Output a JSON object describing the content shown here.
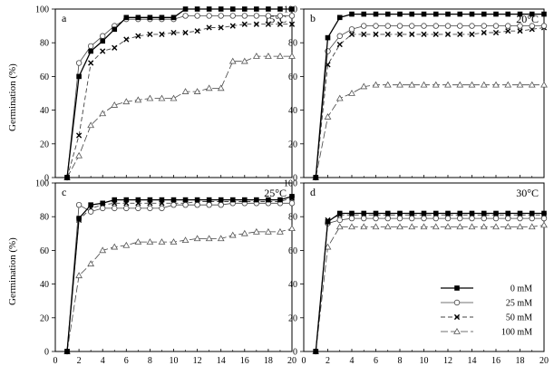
{
  "figure": {
    "ylabel": "Germination (%)",
    "legend_placement": "bottom-right of panel d"
  },
  "chart_data": [
    {
      "type": "line",
      "panel": "a",
      "annotation": "15°C",
      "ylabel": "Germination (%)",
      "xlim": [
        0,
        20
      ],
      "ylim": [
        0,
        100
      ],
      "x_ticks": [
        "0",
        "2",
        "4",
        "6",
        "8",
        "10",
        "12",
        "14",
        "16",
        "18",
        "20"
      ],
      "y_ticks": [
        "0",
        "20",
        "40",
        "60",
        "80",
        "100"
      ],
      "grid": false,
      "x": [
        1,
        2,
        3,
        4,
        5,
        6,
        7,
        8,
        9,
        10,
        11,
        12,
        13,
        14,
        15,
        16,
        17,
        18,
        19,
        20
      ],
      "series": [
        {
          "name": "0 mM",
          "values": [
            0,
            60,
            75,
            81,
            88,
            95,
            95,
            95,
            95,
            95,
            100,
            100,
            100,
            100,
            100,
            100,
            100,
            100,
            100,
            100
          ]
        },
        {
          "name": "25 mM",
          "values": [
            0,
            68,
            78,
            84,
            90,
            94,
            94,
            94,
            94,
            94,
            96,
            96,
            96,
            96,
            96,
            96,
            96,
            96,
            96,
            96
          ]
        },
        {
          "name": "50 mM",
          "values": [
            0,
            25,
            68,
            75,
            77,
            82,
            84,
            85,
            85,
            86,
            86,
            87,
            89,
            89,
            90,
            91,
            91,
            91,
            91,
            91
          ]
        },
        {
          "name": "100 mM",
          "values": [
            0,
            13,
            31,
            38,
            43,
            45,
            46,
            47,
            47,
            47,
            51,
            51,
            53,
            53,
            69,
            69,
            72,
            72,
            72,
            72
          ]
        }
      ]
    },
    {
      "type": "line",
      "panel": "b",
      "annotation": "20°C",
      "ylabel": "",
      "xlim": [
        0,
        20
      ],
      "ylim": [
        0,
        100
      ],
      "x_ticks": [
        "0",
        "2",
        "4",
        "6",
        "8",
        "10",
        "12",
        "14",
        "16",
        "18",
        "20"
      ],
      "y_ticks": [
        "0",
        "20",
        "40",
        "60",
        "80",
        "100"
      ],
      "grid": false,
      "x": [
        1,
        2,
        3,
        4,
        5,
        6,
        7,
        8,
        9,
        10,
        11,
        12,
        13,
        14,
        15,
        16,
        17,
        18,
        19,
        20
      ],
      "series": [
        {
          "name": "0 mM",
          "values": [
            0,
            83,
            95,
            97,
            97,
            97,
            97,
            97,
            97,
            97,
            97,
            97,
            97,
            97,
            97,
            97,
            97,
            97,
            97,
            97
          ]
        },
        {
          "name": "25 mM",
          "values": [
            0,
            75,
            84,
            88,
            90,
            90,
            90,
            90,
            90,
            90,
            90,
            90,
            90,
            90,
            90,
            90,
            90,
            90,
            90,
            90
          ]
        },
        {
          "name": "50 mM",
          "values": [
            0,
            67,
            79,
            85,
            85,
            85,
            85,
            85,
            85,
            85,
            85,
            85,
            85,
            85,
            86,
            86,
            87,
            87,
            88,
            89
          ]
        },
        {
          "name": "100 mM",
          "values": [
            0,
            36,
            47,
            50,
            54,
            55,
            55,
            55,
            55,
            55,
            55,
            55,
            55,
            55,
            55,
            55,
            55,
            55,
            55,
            55
          ]
        }
      ]
    },
    {
      "type": "line",
      "panel": "c",
      "annotation": "25°C",
      "ylabel": "Germination (%)",
      "xlim": [
        0,
        20
      ],
      "ylim": [
        0,
        100
      ],
      "x_ticks": [
        "0",
        "2",
        "4",
        "6",
        "8",
        "10",
        "12",
        "14",
        "16",
        "18",
        "20"
      ],
      "y_ticks": [
        "0",
        "20",
        "40",
        "60",
        "80",
        "100"
      ],
      "grid": false,
      "x": [
        1,
        2,
        3,
        4,
        5,
        6,
        7,
        8,
        9,
        10,
        11,
        12,
        13,
        14,
        15,
        16,
        17,
        18,
        19,
        20
      ],
      "series": [
        {
          "name": "0 mM",
          "values": [
            0,
            79,
            87,
            88,
            90,
            90,
            90,
            90,
            90,
            90,
            90,
            90,
            90,
            90,
            90,
            90,
            90,
            90,
            90,
            92
          ]
        },
        {
          "name": "25 mM",
          "values": [
            0,
            87,
            83,
            85,
            85,
            85,
            85,
            85,
            85,
            87,
            87,
            87,
            87,
            87,
            88,
            88,
            88,
            88,
            88,
            88
          ]
        },
        {
          "name": "50 mM",
          "values": [
            0,
            78,
            85,
            87,
            88,
            88,
            88,
            88,
            88,
            88,
            88,
            89,
            89,
            89,
            89,
            89,
            89,
            89,
            89,
            91
          ]
        },
        {
          "name": "100 mM",
          "values": [
            0,
            45,
            52,
            60,
            62,
            63,
            65,
            65,
            65,
            65,
            66,
            67,
            67,
            67,
            69,
            70,
            71,
            71,
            71,
            73
          ]
        }
      ]
    },
    {
      "type": "line",
      "panel": "d",
      "annotation": "30°C",
      "ylabel": "",
      "xlim": [
        0,
        20
      ],
      "ylim": [
        0,
        100
      ],
      "x_ticks": [
        "0",
        "2",
        "4",
        "6",
        "8",
        "10",
        "12",
        "14",
        "16",
        "18",
        "20"
      ],
      "y_ticks": [
        "0",
        "20",
        "40",
        "60",
        "80",
        "100"
      ],
      "grid": false,
      "x": [
        1,
        2,
        3,
        4,
        5,
        6,
        7,
        8,
        9,
        10,
        11,
        12,
        13,
        14,
        15,
        16,
        17,
        18,
        19,
        20
      ],
      "legend": true,
      "series": [
        {
          "name": "0 mM",
          "values": [
            0,
            77,
            82,
            82,
            82,
            82,
            82,
            82,
            82,
            82,
            82,
            82,
            82,
            82,
            82,
            82,
            82,
            82,
            82,
            82
          ]
        },
        {
          "name": "25 mM",
          "values": [
            0,
            76,
            78,
            79,
            79,
            79,
            79,
            79,
            79,
            79,
            79,
            79,
            79,
            79,
            79,
            79,
            79,
            79,
            79,
            79
          ]
        },
        {
          "name": "50 mM",
          "values": [
            0,
            78,
            81,
            81,
            81,
            81,
            81,
            81,
            81,
            81,
            81,
            81,
            81,
            81,
            81,
            81,
            81,
            81,
            81,
            81
          ]
        },
        {
          "name": "100 mM",
          "values": [
            0,
            62,
            74,
            74,
            74,
            74,
            74,
            74,
            74,
            74,
            74,
            74,
            74,
            74,
            74,
            74,
            74,
            74,
            74,
            75
          ]
        }
      ]
    }
  ]
}
